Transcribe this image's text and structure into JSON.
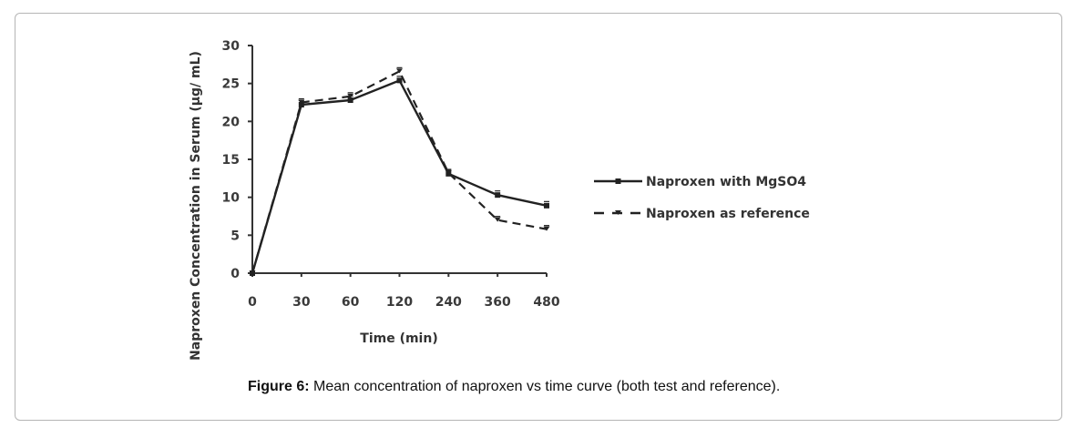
{
  "chart_data": {
    "type": "line",
    "categories": [
      "0",
      "30",
      "60",
      "120",
      "240",
      "360",
      "480"
    ],
    "xlabel": "Time (min)",
    "ylabel": "Naproxen Concentration in Serum (µg/ mL)",
    "ylim": [
      0,
      30
    ],
    "yticks": [
      "0",
      "5",
      "10",
      "15",
      "20",
      "25",
      "30"
    ],
    "grid": false,
    "legend_position": "right",
    "series": [
      {
        "name": "Naproxen with MgSO4",
        "style": "solid",
        "color": "#222222",
        "values": [
          0,
          22.2,
          22.8,
          25.4,
          13.1,
          10.3,
          8.9
        ]
      },
      {
        "name": "Naproxen as reference",
        "style": "dashed",
        "color": "#222222",
        "values": [
          0,
          22.5,
          23.3,
          26.6,
          13.2,
          7.0,
          5.8
        ]
      }
    ]
  },
  "caption": {
    "label": "Figure 6:",
    "text": " Mean concentration of naproxen vs time curve (both test and reference)."
  }
}
